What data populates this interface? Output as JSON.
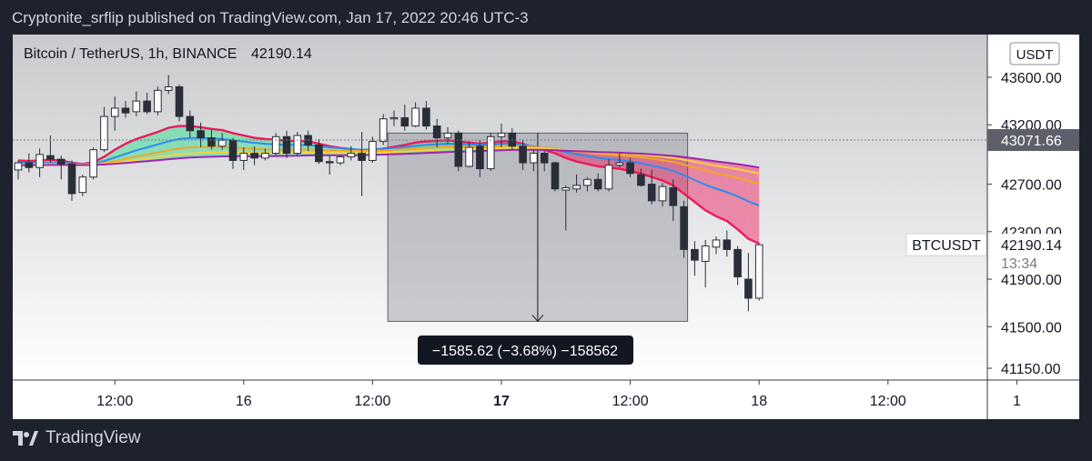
{
  "header": {
    "published_line": "Cryptonite_srflip published on TradingView.com, Jan 17, 2022 20:46 UTC-3"
  },
  "footer": {
    "brand": "TradingView",
    "logo_icon": "tradingview-logo-icon"
  },
  "symbol": {
    "title": "Bitcoin / TetherUS, 1h, BINANCE",
    "last_price": "42190.14",
    "ticker": "BTCUSDT",
    "countdown": "13:34"
  },
  "currency": "USDT",
  "colors": {
    "bullish": "#ffffff",
    "bearish": "#2a2e39",
    "ribbon_up": "#22e08c",
    "ribbon_down": "#f0185a",
    "ma_fast": "#f0185a",
    "ma_blue": "#2d8cf0",
    "ma_orange": "#f5a623",
    "ma_yellow": "#f7d23e",
    "ma_purple": "#9c27b0"
  },
  "measure": {
    "label": "−1585.62 (−3.68%) −158562",
    "from_price": 43130,
    "to_price": 41545
  },
  "crosshair_price": "43071.66",
  "chart_data": {
    "type": "candlestick",
    "title": "Bitcoin / TetherUS, 1h, BINANCE",
    "y_ticks": [
      "43600.00",
      "43200.00",
      "42700.00",
      "42300.00",
      "41900.00",
      "41500.00",
      "41150.00"
    ],
    "y_tick_values": [
      43600,
      43200,
      42700,
      42300,
      41900,
      41500,
      41150
    ],
    "x_ticks": [
      {
        "label": "12:00",
        "bold": false,
        "index": 9
      },
      {
        "label": "16",
        "bold": false,
        "index": 21
      },
      {
        "label": "12:00",
        "bold": false,
        "index": 33
      },
      {
        "label": "17",
        "bold": true,
        "index": 45
      },
      {
        "label": "12:00",
        "bold": false,
        "index": 57
      },
      {
        "label": "18",
        "bold": false,
        "index": 69
      },
      {
        "label": "12:00",
        "bold": false,
        "index": 81
      },
      {
        "label": "1",
        "bold": false,
        "index": 93
      }
    ],
    "candles": [
      [
        42820,
        42900,
        42740,
        42880
      ],
      [
        42880,
        42960,
        42800,
        42840
      ],
      [
        42840,
        43000,
        42760,
        42950
      ],
      [
        42940,
        43110,
        42880,
        42910
      ],
      [
        42910,
        42940,
        42740,
        42870
      ],
      [
        42870,
        42900,
        42560,
        42620
      ],
      [
        42630,
        42780,
        42600,
        42760
      ],
      [
        42760,
        43010,
        42740,
        42990
      ],
      [
        42990,
        43350,
        42970,
        43270
      ],
      [
        43270,
        43440,
        43150,
        43340
      ],
      [
        43340,
        43400,
        43260,
        43300
      ],
      [
        43310,
        43480,
        43270,
        43400
      ],
      [
        43400,
        43470,
        43290,
        43310
      ],
      [
        43310,
        43520,
        43280,
        43490
      ],
      [
        43490,
        43620,
        43460,
        43520
      ],
      [
        43520,
        43540,
        43230,
        43270
      ],
      [
        43270,
        43320,
        43090,
        43150
      ],
      [
        43150,
        43220,
        43010,
        43090
      ],
      [
        43090,
        43160,
        42990,
        43020
      ],
      [
        43020,
        43130,
        42990,
        43070
      ],
      [
        43070,
        43090,
        42830,
        42900
      ],
      [
        42900,
        43010,
        42820,
        42960
      ],
      [
        42960,
        43020,
        42860,
        42920
      ],
      [
        42920,
        43000,
        42900,
        42960
      ],
      [
        42960,
        43130,
        42940,
        43100
      ],
      [
        43100,
        43150,
        42920,
        42960
      ],
      [
        42960,
        43140,
        42940,
        43110
      ],
      [
        43110,
        43150,
        42980,
        43030
      ],
      [
        43030,
        43080,
        42870,
        42890
      ],
      [
        42890,
        42940,
        42780,
        42880
      ],
      [
        42880,
        42940,
        42860,
        42930
      ],
      [
        42930,
        43020,
        42900,
        42960
      ],
      [
        42960,
        43140,
        42600,
        42900
      ],
      [
        42900,
        43100,
        42880,
        43060
      ],
      [
        43060,
        43290,
        43030,
        43250
      ],
      [
        43250,
        43320,
        43190,
        43260
      ],
      [
        43260,
        43370,
        43150,
        43190
      ],
      [
        43190,
        43390,
        43180,
        43340
      ],
      [
        43340,
        43400,
        43160,
        43190
      ],
      [
        43190,
        43250,
        43010,
        43090
      ],
      [
        43090,
        43180,
        43040,
        43130
      ],
      [
        43130,
        43150,
        42810,
        42850
      ],
      [
        42850,
        43060,
        42840,
        43010
      ],
      [
        43020,
        43070,
        42760,
        42830
      ],
      [
        42830,
        43130,
        42810,
        43100
      ],
      [
        43100,
        43210,
        43010,
        43130
      ],
      [
        43130,
        43170,
        42990,
        43020
      ],
      [
        43020,
        43070,
        42820,
        42880
      ],
      [
        42880,
        42990,
        42810,
        42960
      ],
      [
        42960,
        42980,
        42810,
        42880
      ],
      [
        42880,
        42890,
        42640,
        42660
      ],
      [
        42650,
        42690,
        42310,
        42670
      ],
      [
        42660,
        42780,
        42630,
        42690
      ],
      [
        42690,
        42760,
        42640,
        42740
      ],
      [
        42740,
        42790,
        42640,
        42660
      ],
      [
        42660,
        42910,
        42640,
        42860
      ],
      [
        42860,
        42960,
        42840,
        42880
      ],
      [
        42880,
        42920,
        42760,
        42790
      ],
      [
        42780,
        42830,
        42680,
        42690
      ],
      [
        42700,
        42820,
        42530,
        42560
      ],
      [
        42560,
        42710,
        42510,
        42680
      ],
      [
        42670,
        42740,
        42390,
        42520
      ],
      [
        42510,
        42560,
        42080,
        42150
      ],
      [
        42150,
        42220,
        41930,
        42060
      ],
      [
        42050,
        42230,
        41830,
        42180
      ],
      [
        42170,
        42260,
        42110,
        42230
      ],
      [
        42230,
        42310,
        42090,
        42150
      ],
      [
        42150,
        42180,
        41850,
        41920
      ],
      [
        41900,
        42120,
        41630,
        41740
      ],
      [
        41740,
        42200,
        41720,
        42190
      ]
    ],
    "moving_averages": [
      {
        "color": "#f0185a",
        "values": [
          42900,
          42895,
          42900,
          42905,
          42900,
          42880,
          42870,
          42885,
          42930,
          42990,
          43040,
          43080,
          43110,
          43140,
          43175,
          43190,
          43190,
          43180,
          43165,
          43155,
          43130,
          43110,
          43090,
          43080,
          43075,
          43065,
          43065,
          43060,
          43040,
          43020,
          43005,
          42995,
          42980,
          42990,
          43000,
          43015,
          43030,
          43050,
          43060,
          43065,
          43070,
          43060,
          43050,
          43040,
          43050,
          43060,
          43060,
          43040,
          43010,
          42990,
          42960,
          42920,
          42890,
          42870,
          42850,
          42840,
          42830,
          42810,
          42790,
          42760,
          42730,
          42690,
          42620,
          42550,
          42480,
          42430,
          42390,
          42320,
          42240,
          42200
        ]
      },
      {
        "color": "#2d8cf0",
        "values": [
          42880,
          42880,
          42880,
          42882,
          42882,
          42876,
          42870,
          42875,
          42895,
          42925,
          42955,
          42985,
          43010,
          43035,
          43060,
          43080,
          43088,
          43090,
          43085,
          43080,
          43070,
          43058,
          43048,
          43040,
          43036,
          43030,
          43030,
          43028,
          43020,
          43010,
          43003,
          42998,
          42990,
          42993,
          42998,
          43005,
          43012,
          43022,
          43030,
          43036,
          43040,
          43038,
          43034,
          43030,
          43034,
          43040,
          43040,
          43032,
          43018,
          43006,
          42990,
          42970,
          42952,
          42937,
          42922,
          42912,
          42903,
          42890,
          42876,
          42857,
          42837,
          42812,
          42775,
          42735,
          42695,
          42662,
          42633,
          42598,
          42555,
          42520
        ]
      },
      {
        "color": "#f5a623",
        "values": [
          42870,
          42870,
          42870,
          42871,
          42871,
          42868,
          42865,
          42867,
          42878,
          42895,
          42913,
          42932,
          42950,
          42967,
          42985,
          43000,
          43008,
          43012,
          43012,
          43012,
          43008,
          43002,
          42997,
          42993,
          42992,
          42990,
          42992,
          42992,
          42990,
          42986,
          42984,
          42982,
          42979,
          42981,
          42984,
          42989,
          42994,
          43001,
          43007,
          43012,
          43016,
          43016,
          43015,
          43014,
          43017,
          43021,
          43023,
          43020,
          43013,
          43007,
          42997,
          42985,
          42974,
          42965,
          42956,
          42950,
          42944,
          42936,
          42927,
          42915,
          42902,
          42887,
          42865,
          42840,
          42815,
          42793,
          42774,
          42753,
          42727,
          42705
        ]
      },
      {
        "color": "#f7d23e",
        "values": [
          42865,
          42865,
          42866,
          42866,
          42866,
          42865,
          42863,
          42864,
          42870,
          42880,
          42892,
          42904,
          42916,
          42928,
          42941,
          42952,
          42959,
          42964,
          42966,
          42968,
          42967,
          42965,
          42963,
          42962,
          42962,
          42962,
          42964,
          42965,
          42965,
          42964,
          42963,
          42963,
          42962,
          42964,
          42967,
          42971,
          42975,
          42980,
          42985,
          42989,
          42993,
          42995,
          42996,
          42997,
          43000,
          43004,
          43006,
          43006,
          43003,
          43000,
          42994,
          42987,
          42980,
          42974,
          42968,
          42964,
          42960,
          42954,
          42948,
          42940,
          42931,
          42921,
          42906,
          42889,
          42871,
          42855,
          42841,
          42826,
          42808,
          42790
        ]
      },
      {
        "color": "#9c27b0",
        "values": [
          42860,
          42861,
          42861,
          42862,
          42862,
          42862,
          42861,
          42862,
          42866,
          42872,
          42879,
          42886,
          42894,
          42902,
          42910,
          42918,
          42924,
          42928,
          42931,
          42934,
          42935,
          42936,
          42936,
          42936,
          42937,
          42938,
          42940,
          42942,
          42943,
          42943,
          42944,
          42944,
          42944,
          42946,
          42949,
          42952,
          42955,
          42959,
          42963,
          42967,
          42971,
          42974,
          42976,
          42978,
          42981,
          42985,
          42988,
          42989,
          42989,
          42988,
          42986,
          42982,
          42978,
          42975,
          42971,
          42968,
          42965,
          42961,
          42957,
          42951,
          42945,
          42938,
          42928,
          42917,
          42904,
          42892,
          42881,
          42869,
          42855,
          42840
        ]
      }
    ]
  }
}
